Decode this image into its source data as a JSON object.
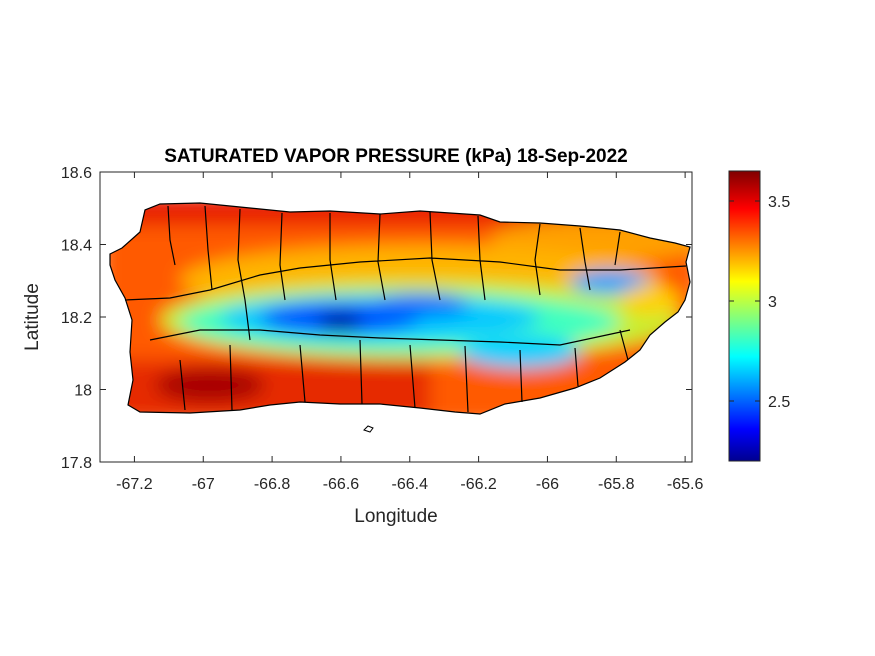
{
  "figure": {
    "title": "SATURATED VAPOR PRESSURE (kPa) 18-Sep-2022",
    "xlabel": "Longitude",
    "ylabel": "Latitude"
  },
  "chart_data": {
    "type": "heatmap",
    "title": "SATURATED VAPOR PRESSURE (kPa) 18-Sep-2022",
    "xlabel": "Longitude",
    "ylabel": "Latitude",
    "xlim": [
      -67.3,
      -65.58
    ],
    "ylim": [
      17.8,
      18.6
    ],
    "xticks": [
      -67.2,
      -67,
      -66.8,
      -66.6,
      -66.4,
      -66.2,
      -66,
      -65.8,
      -65.6
    ],
    "xtick_labels": [
      "-67.2",
      "-67",
      "-66.8",
      "-66.6",
      "-66.4",
      "-66.2",
      "-66",
      "-65.8",
      "-65.6"
    ],
    "yticks": [
      17.8,
      18,
      18.2,
      18.4,
      18.6
    ],
    "ytick_labels": [
      "17.8",
      "18",
      "18.2",
      "18.4",
      "18.6"
    ],
    "colorbar": {
      "colormap": "jet",
      "clim": [
        2.2,
        3.65
      ],
      "ticks": [
        2.5,
        3,
        3.5
      ],
      "tick_labels": [
        "2.5",
        "3",
        "3.5"
      ],
      "unit": "kPa"
    },
    "field_summary": {
      "coast_values": 3.5,
      "interior_values": 2.5,
      "minimum": 2.2,
      "minimum_location": [
        -66.58,
        18.17
      ],
      "maximum": 3.65
    },
    "grid": false
  }
}
